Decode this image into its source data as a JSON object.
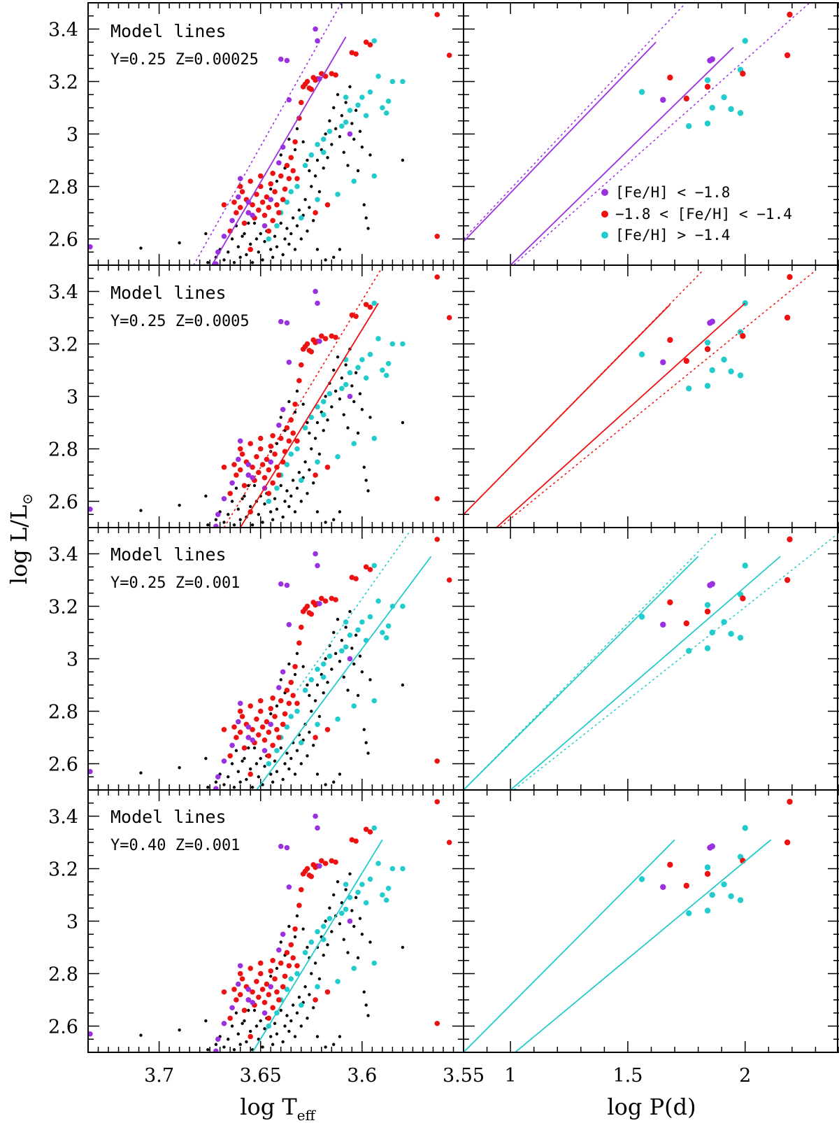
{
  "figure": {
    "y_label_main": "log L/L",
    "y_label_sub": "⊙",
    "x_label_left_main": "log T",
    "x_label_left_sub": "eff",
    "x_label_right": "log P(d)"
  },
  "legend": [
    {
      "label": "[Fe/H] < −1.8",
      "color": "#9b30e0"
    },
    {
      "label": "−1.8 < [Fe/H] < −1.4",
      "color": "#ee1111"
    },
    {
      "label": "[Fe/H] > −1.4",
      "color": "#22cccc"
    }
  ],
  "colors": {
    "metal_poor": "#9b30e0",
    "intermediate": "#ee1111",
    "metal_rich": "#22cccc",
    "other": "#000000"
  },
  "panels": [
    {
      "title": "Model lines",
      "params": "Y=0.25  Z=0.00025",
      "model_color": "#9b30e0"
    },
    {
      "title": "Model lines",
      "params": "Y=0.25  Z=0.0005",
      "model_color": "#ee1111"
    },
    {
      "title": "Model lines",
      "params": "Y=0.25  Z=0.001",
      "model_color": "#22cccc"
    },
    {
      "title": "Model lines",
      "params": "Y=0.40  Z=0.001",
      "model_color": "#22cccc"
    }
  ],
  "chart_data": {
    "type": "scatter",
    "layout": "4 rows x 2 columns (shared y axis)",
    "ylabel": "log L/L⊙",
    "ylim": [
      2.5,
      3.5
    ],
    "yticks": [
      2.6,
      2.8,
      3.0,
      3.2,
      3.4
    ],
    "ytick_labels": [
      "2.6",
      "2.8",
      "3",
      "3.2",
      "3.4"
    ],
    "left": {
      "xlabel": "log Teff",
      "xlim": [
        3.735,
        3.55
      ],
      "xticks": [
        3.7,
        3.65,
        3.6,
        3.55
      ],
      "xtick_labels": [
        "3.7",
        "3.65",
        "3.6",
        "3.55"
      ]
    },
    "right": {
      "xlabel": "log P(d)",
      "xlim": [
        0.8,
        2.4
      ],
      "xticks": [
        1,
        1.5,
        2
      ],
      "xtick_labels": [
        "1",
        "1.5",
        "2"
      ]
    },
    "stars_hr": {
      "metal_poor": [
        [
          3.734,
          2.57
        ],
        [
          3.672,
          2.505
        ],
        [
          3.671,
          2.55
        ],
        [
          3.668,
          2.61
        ],
        [
          3.664,
          2.67
        ],
        [
          3.661,
          2.76
        ],
        [
          3.66,
          2.83
        ],
        [
          3.656,
          2.74
        ],
        [
          3.654,
          2.69
        ],
        [
          3.648,
          2.65
        ],
        [
          3.645,
          2.75
        ],
        [
          3.641,
          2.89
        ],
        [
          3.64,
          3.285
        ],
        [
          3.637,
          3.28
        ],
        [
          3.636,
          3.13
        ],
        [
          3.623,
          3.4
        ],
        [
          3.622,
          3.355
        ],
        [
          3.621,
          3.21
        ],
        [
          3.606,
          3.0
        ],
        [
          3.656,
          2.7
        ],
        [
          3.639,
          2.95
        ]
      ],
      "intermediate": [
        [
          3.665,
          2.63
        ],
        [
          3.662,
          2.7
        ],
        [
          3.66,
          2.72
        ],
        [
          3.659,
          2.78
        ],
        [
          3.658,
          2.66
        ],
        [
          3.657,
          2.75
        ],
        [
          3.656,
          2.7
        ],
        [
          3.655,
          2.82
        ],
        [
          3.654,
          2.73
        ],
        [
          3.653,
          2.68
        ],
        [
          3.652,
          2.77
        ],
        [
          3.651,
          2.71
        ],
        [
          3.65,
          2.8
        ],
        [
          3.649,
          2.74
        ],
        [
          3.648,
          2.69
        ],
        [
          3.647,
          2.76
        ],
        [
          3.646,
          2.72
        ],
        [
          3.645,
          2.81
        ],
        [
          3.644,
          2.67
        ],
        [
          3.643,
          2.78
        ],
        [
          3.642,
          2.73
        ],
        [
          3.641,
          2.7
        ],
        [
          3.64,
          2.84
        ],
        [
          3.639,
          2.75
        ],
        [
          3.638,
          2.79
        ],
        [
          3.637,
          2.88
        ],
        [
          3.636,
          2.83
        ],
        [
          3.635,
          2.91
        ],
        [
          3.634,
          2.86
        ],
        [
          3.633,
          2.97
        ],
        [
          3.632,
          2.83
        ],
        [
          3.631,
          3.06
        ],
        [
          3.63,
          3.12
        ],
        [
          3.629,
          3.18
        ],
        [
          3.628,
          3.19
        ],
        [
          3.627,
          3.2
        ],
        [
          3.626,
          3.175
        ],
        [
          3.625,
          3.17
        ],
        [
          3.624,
          3.215
        ],
        [
          3.623,
          3.205
        ],
        [
          3.622,
          3.21
        ],
        [
          3.62,
          3.23
        ],
        [
          3.618,
          3.22
        ],
        [
          3.615,
          3.23
        ],
        [
          3.613,
          3.225
        ],
        [
          3.605,
          3.31
        ],
        [
          3.603,
          3.305
        ],
        [
          3.598,
          3.35
        ],
        [
          3.596,
          3.34
        ],
        [
          3.617,
          2.73
        ],
        [
          3.623,
          2.7
        ],
        [
          3.655,
          2.56
        ],
        [
          3.563,
          3.455
        ],
        [
          3.557,
          3.3
        ],
        [
          3.563,
          2.61
        ],
        [
          3.65,
          2.84
        ],
        [
          3.646,
          2.63
        ],
        [
          3.644,
          2.85
        ],
        [
          3.66,
          2.8
        ],
        [
          3.663,
          2.74
        ],
        [
          3.668,
          2.73
        ]
      ],
      "metal_rich": [
        [
          3.646,
          2.6
        ],
        [
          3.642,
          2.65
        ],
        [
          3.64,
          2.7
        ],
        [
          3.637,
          2.74
        ],
        [
          3.635,
          2.78
        ],
        [
          3.632,
          2.8
        ],
        [
          3.628,
          2.88
        ],
        [
          3.625,
          2.92
        ],
        [
          3.622,
          2.96
        ],
        [
          3.619,
          2.98
        ],
        [
          3.616,
          3.01
        ],
        [
          3.612,
          2.77
        ],
        [
          3.61,
          3.03
        ],
        [
          3.608,
          3.14
        ],
        [
          3.606,
          3.09
        ],
        [
          3.604,
          2.82
        ],
        [
          3.602,
          3.11
        ],
        [
          3.6,
          3.14
        ],
        [
          3.598,
          3.07
        ],
        [
          3.596,
          3.16
        ],
        [
          3.594,
          2.84
        ],
        [
          3.592,
          3.22
        ],
        [
          3.59,
          3.1
        ],
        [
          3.588,
          3.08
        ],
        [
          3.587,
          3.125
        ],
        [
          3.585,
          3.2
        ],
        [
          3.594,
          3.355
        ],
        [
          3.58,
          3.2
        ],
        [
          3.608,
          3.045
        ],
        [
          3.619,
          2.93
        ],
        [
          3.622,
          2.75
        ],
        [
          3.63,
          2.68
        ]
      ],
      "other": [
        [
          3.709,
          2.565
        ],
        [
          3.69,
          2.585
        ],
        [
          3.677,
          2.62
        ],
        [
          3.676,
          2.51
        ],
        [
          3.672,
          2.53
        ],
        [
          3.67,
          2.56
        ],
        [
          3.668,
          2.52
        ],
        [
          3.666,
          2.55
        ],
        [
          3.664,
          2.6
        ],
        [
          3.663,
          2.51
        ],
        [
          3.661,
          2.57
        ],
        [
          3.66,
          2.53
        ],
        [
          3.658,
          2.62
        ],
        [
          3.657,
          2.54
        ],
        [
          3.655,
          2.58
        ],
        [
          3.654,
          2.51
        ],
        [
          3.652,
          2.6
        ],
        [
          3.651,
          2.55
        ],
        [
          3.649,
          2.52
        ],
        [
          3.648,
          2.59
        ],
        [
          3.647,
          2.63
        ],
        [
          3.645,
          2.56
        ],
        [
          3.644,
          2.53
        ],
        [
          3.643,
          2.61
        ],
        [
          3.642,
          2.57
        ],
        [
          3.64,
          2.66
        ],
        [
          3.639,
          2.54
        ],
        [
          3.638,
          2.6
        ],
        [
          3.637,
          2.64
        ],
        [
          3.636,
          2.58
        ],
        [
          3.635,
          2.62
        ],
        [
          3.634,
          2.68
        ],
        [
          3.633,
          2.56
        ],
        [
          3.632,
          2.65
        ],
        [
          3.631,
          2.71
        ],
        [
          3.63,
          2.6
        ],
        [
          3.629,
          2.69
        ],
        [
          3.628,
          2.75
        ],
        [
          3.627,
          2.63
        ],
        [
          3.626,
          2.72
        ],
        [
          3.625,
          2.8
        ],
        [
          3.624,
          2.67
        ],
        [
          3.623,
          2.84
        ],
        [
          3.622,
          2.9
        ],
        [
          3.621,
          2.78
        ],
        [
          3.62,
          2.94
        ],
        [
          3.619,
          2.87
        ],
        [
          3.618,
          3.0
        ],
        [
          3.617,
          2.91
        ],
        [
          3.616,
          3.05
        ],
        [
          3.615,
          2.96
        ],
        [
          3.614,
          3.1
        ],
        [
          3.613,
          3.02
        ],
        [
          3.612,
          3.15
        ],
        [
          3.611,
          2.99
        ],
        [
          3.61,
          3.07
        ],
        [
          3.609,
          2.93
        ],
        [
          3.608,
          3.12
        ],
        [
          3.607,
          2.88
        ],
        [
          3.606,
          3.18
        ],
        [
          3.605,
          3.04
        ],
        [
          3.604,
          2.98
        ],
        [
          3.603,
          3.09
        ],
        [
          3.602,
          2.86
        ],
        [
          3.601,
          3.01
        ],
        [
          3.6,
          2.95
        ],
        [
          3.599,
          2.73
        ],
        [
          3.598,
          2.68
        ],
        [
          3.597,
          2.64
        ],
        [
          3.596,
          2.92
        ],
        [
          3.64,
          2.92
        ],
        [
          3.636,
          2.98
        ],
        [
          3.632,
          3.02
        ],
        [
          3.629,
          2.97
        ],
        [
          3.627,
          2.9
        ],
        [
          3.626,
          2.86
        ],
        [
          3.633,
          2.94
        ],
        [
          3.638,
          2.87
        ],
        [
          3.642,
          2.82
        ],
        [
          3.645,
          2.79
        ],
        [
          3.65,
          2.62
        ],
        [
          3.653,
          2.66
        ],
        [
          3.656,
          2.66
        ],
        [
          3.659,
          2.61
        ],
        [
          3.662,
          2.65
        ],
        [
          3.58,
          2.9
        ],
        [
          3.611,
          2.56
        ],
        [
          3.614,
          2.53
        ],
        [
          3.622,
          2.56
        ],
        [
          3.618,
          2.52
        ]
      ]
    },
    "stars_pl": {
      "metal_poor": [
        [
          1.65,
          3.13
        ],
        [
          1.85,
          3.28
        ],
        [
          1.86,
          3.285
        ]
      ],
      "intermediate": [
        [
          1.68,
          3.215
        ],
        [
          1.75,
          3.135
        ],
        [
          1.84,
          3.18
        ],
        [
          1.99,
          3.23
        ],
        [
          2.19,
          3.455
        ],
        [
          2.18,
          3.3
        ]
      ],
      "metal_rich": [
        [
          1.56,
          3.16
        ],
        [
          1.76,
          3.03
        ],
        [
          1.84,
          3.04
        ],
        [
          1.84,
          3.205
        ],
        [
          1.86,
          3.1
        ],
        [
          1.91,
          3.14
        ],
        [
          1.94,
          3.095
        ],
        [
          1.98,
          3.245
        ],
        [
          1.98,
          3.08
        ],
        [
          2.0,
          3.355
        ]
      ]
    },
    "model_lines": [
      {
        "panel": "Y=0.25 Z=0.00025",
        "color": "#9b30e0",
        "hr_solid": [
          [
            3.674,
            2.5
          ],
          [
            3.608,
            3.37
          ]
        ],
        "hr_dotted": [
          [
            3.683,
            2.5
          ],
          [
            3.608,
            3.53
          ]
        ],
        "pl_solid": [
          [
            [
              0.8,
              2.59
            ],
            [
              1.62,
              3.35
            ]
          ],
          [
            [
              1.0,
              2.5
            ],
            [
              1.95,
              3.33
            ]
          ]
        ],
        "pl_dotted": [
          [
            [
              0.8,
              2.6
            ],
            [
              1.8,
              3.55
            ]
          ],
          [
            [
              1.0,
              2.49
            ],
            [
              2.3,
              3.52
            ]
          ]
        ]
      },
      {
        "panel": "Y=0.25 Z=0.0005",
        "color": "#ee1111",
        "hr_solid": [
          [
            3.66,
            2.5
          ],
          [
            3.592,
            3.355
          ]
        ],
        "hr_dotted": [
          [
            3.668,
            2.5
          ],
          [
            3.591,
            3.48
          ]
        ],
        "pl_solid": [
          [
            [
              0.8,
              2.55
            ],
            [
              1.68,
              3.35
            ]
          ],
          [
            [
              0.94,
              2.5
            ],
            [
              2.0,
              3.355
            ]
          ]
        ],
        "pl_dotted": [
          [
            [
              0.8,
              2.55
            ],
            [
              1.82,
              3.48
            ]
          ],
          [
            [
              0.94,
              2.49
            ],
            [
              2.3,
              3.48
            ]
          ]
        ]
      },
      {
        "panel": "Y=0.25 Z=0.001",
        "color": "#22cccc",
        "hr_solid": [
          [
            3.652,
            2.5
          ],
          [
            3.566,
            3.39
          ]
        ],
        "hr_dotted": [
          [
            3.632,
            2.88
          ],
          [
            3.577,
            3.48
          ]
        ],
        "pl_solid": [
          [
            [
              0.8,
              2.5
            ],
            [
              1.8,
              3.39
            ]
          ],
          [
            [
              1.0,
              2.5
            ],
            [
              2.15,
              3.39
            ]
          ]
        ],
        "pl_dotted": [
          [
            [
              0.8,
              2.5
            ],
            [
              1.88,
              3.48
            ]
          ],
          [
            [
              1.0,
              2.49
            ],
            [
              2.4,
              3.48
            ]
          ]
        ]
      },
      {
        "panel": "Y=0.40 Z=0.001",
        "color": "#22cccc",
        "hr_solid": [
          [
            3.654,
            2.5
          ],
          [
            3.59,
            3.31
          ]
        ],
        "hr_dotted": null,
        "pl_solid": [
          [
            [
              0.8,
              2.5
            ],
            [
              1.7,
              3.31
            ]
          ],
          [
            [
              1.02,
              2.5
            ],
            [
              2.11,
              3.31
            ]
          ]
        ],
        "pl_dotted": null
      }
    ]
  }
}
